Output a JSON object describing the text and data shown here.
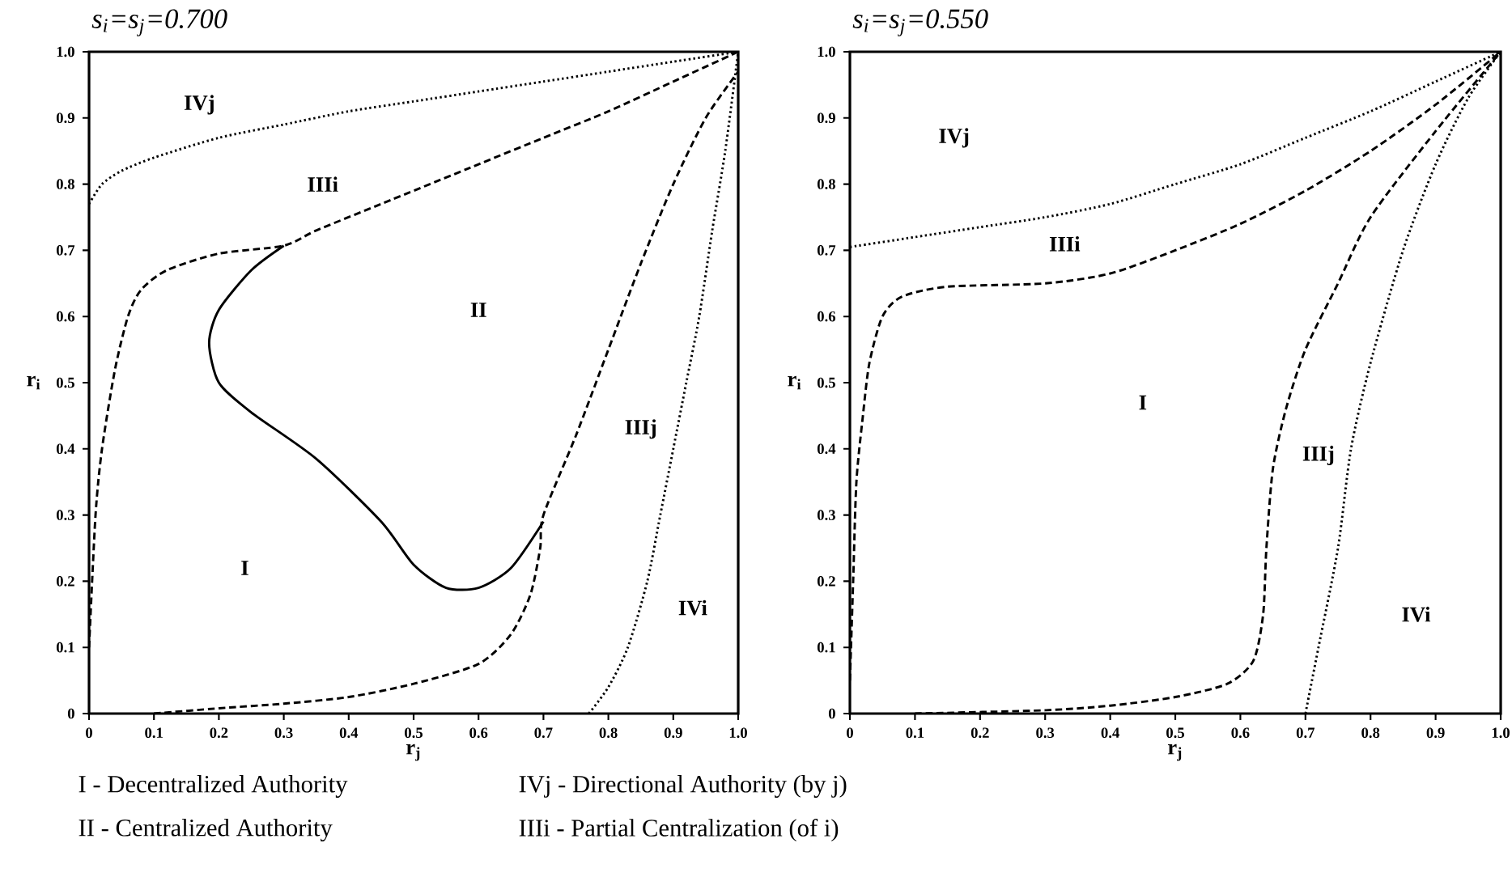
{
  "chart_data": [
    {
      "type": "line",
      "title": "s$_{i}$=s$_{j}$=0.700",
      "xlabel": "r$_{j}$",
      "ylabel": "r$_{i}$",
      "xlim": [
        0,
        1
      ],
      "ylim": [
        0,
        1
      ],
      "xticks": [
        0,
        0.1,
        0.2,
        0.3,
        0.4,
        0.5,
        0.6,
        0.7,
        0.8,
        0.9,
        {
          "value": 1,
          "label": "1.0"
        }
      ],
      "yticks": [
        0,
        0.1,
        0.2,
        0.3,
        0.4,
        0.5,
        0.6,
        0.7,
        0.8,
        0.9,
        {
          "value": 1,
          "label": "1.0"
        }
      ],
      "series": [
        {
          "color": "#000000",
          "line_style": "dotted",
          "x": [
            0,
            0.02,
            0.05,
            0.1,
            0.2,
            0.3,
            0.4,
            0.5,
            0.6,
            0.7,
            0.8,
            0.9,
            1
          ],
          "values": [
            0.77,
            0.8,
            0.82,
            0.84,
            0.87,
            0.89,
            0.91,
            0.925,
            0.94,
            0.955,
            0.97,
            0.985,
            1
          ]
        },
        {
          "color": "#000000",
          "line_style": "dashed",
          "x": [
            0,
            0.01,
            0.02,
            0.04,
            0.06,
            0.08,
            0.12,
            0.2,
            0.3,
            0.35,
            0.45,
            0.6,
            0.7,
            0.8,
            0.9,
            1
          ],
          "values": [
            0.1,
            0.3,
            0.4,
            0.52,
            0.6,
            0.64,
            0.67,
            0.695,
            0.707,
            0.73,
            0.77,
            0.83,
            0.87,
            0.91,
            0.955,
            1
          ]
        },
        {
          "color": "#000000",
          "line_style": "solid",
          "x": [
            0.3,
            0.25,
            0.2,
            0.185,
            0.2,
            0.25,
            0.35,
            0.45,
            0.5,
            0.55,
            0.6,
            0.65,
            0.7
          ],
          "values": [
            0.707,
            0.67,
            0.61,
            0.56,
            0.5,
            0.455,
            0.385,
            0.29,
            0.225,
            0.19,
            0.19,
            0.22,
            0.29
          ]
        },
        {
          "color": "#000000",
          "line_style": "dashed",
          "x": [
            0.1,
            0.2,
            0.3,
            0.4,
            0.5,
            0.6,
            0.65,
            0.68,
            0.695,
            0.7,
            0.75,
            0.8,
            0.85,
            0.9,
            0.95,
            1
          ],
          "values": [
            0,
            0.008,
            0.015,
            0.025,
            0.045,
            0.075,
            0.12,
            0.18,
            0.25,
            0.3,
            0.42,
            0.55,
            0.68,
            0.8,
            0.9,
            0.97
          ]
        },
        {
          "color": "#000000",
          "line_style": "dotted",
          "x": [
            0.77,
            0.8,
            0.83,
            0.86,
            0.88,
            0.9,
            0.92,
            0.94,
            0.96,
            0.98,
            1
          ],
          "values": [
            0,
            0.04,
            0.1,
            0.2,
            0.3,
            0.4,
            0.5,
            0.6,
            0.73,
            0.85,
            1
          ]
        }
      ],
      "annotations": [
        "IVj",
        "IIIi",
        "II",
        "IIIj",
        "I",
        "IVi",
        "I - Decentralized Authority",
        "II - Centralized Authority",
        "IVj - Directional Authority (by j)",
        "IIIi - Partial Centralization (of i)"
      ]
    },
    {
      "type": "line",
      "title": "s$_{i}$=s$_{j}$=0.550",
      "xlabel": "r$_{j}$",
      "ylabel": "r$_{i}$",
      "xlim": [
        0,
        1
      ],
      "ylim": [
        0,
        1
      ],
      "xticks": [
        0,
        0.1,
        0.2,
        0.3,
        0.4,
        0.5,
        0.6,
        0.7,
        0.8,
        0.9,
        {
          "value": 1,
          "label": "1.0"
        }
      ],
      "yticks": [
        0,
        0.1,
        0.2,
        0.3,
        0.4,
        0.5,
        0.6,
        0.7,
        0.8,
        0.9,
        {
          "value": 1,
          "label": "1.0"
        }
      ],
      "series": [
        {
          "color": "#000000",
          "line_style": "dotted",
          "x": [
            0,
            0.1,
            0.2,
            0.3,
            0.4,
            0.5,
            0.6,
            0.7,
            0.8,
            0.9,
            1
          ],
          "values": [
            0.705,
            0.72,
            0.735,
            0.75,
            0.77,
            0.8,
            0.83,
            0.87,
            0.91,
            0.955,
            1
          ]
        },
        {
          "color": "#000000",
          "line_style": "dashed",
          "x": [
            0,
            0.005,
            0.01,
            0.02,
            0.03,
            0.05,
            0.08,
            0.15,
            0.3,
            0.4,
            0.5,
            0.6,
            0.7,
            0.8,
            0.9,
            1
          ],
          "values": [
            0.05,
            0.2,
            0.35,
            0.45,
            0.53,
            0.6,
            0.63,
            0.645,
            0.65,
            0.665,
            0.7,
            0.74,
            0.79,
            0.85,
            0.92,
            1
          ]
        },
        {
          "color": "#000000",
          "line_style": "dashed",
          "x": [
            0.1,
            0.3,
            0.4,
            0.5,
            0.58,
            0.62,
            0.635,
            0.64,
            0.65,
            0.67,
            0.7,
            0.75,
            0.8,
            0.9,
            1
          ],
          "values": [
            0,
            0.005,
            0.012,
            0.025,
            0.045,
            0.08,
            0.15,
            0.25,
            0.37,
            0.46,
            0.55,
            0.65,
            0.75,
            0.88,
            1
          ]
        },
        {
          "color": "#000000",
          "line_style": "dotted",
          "x": [
            0.7,
            0.72,
            0.75,
            0.77,
            0.8,
            0.85,
            0.9,
            0.95,
            1
          ],
          "values": [
            0,
            0.1,
            0.25,
            0.4,
            0.53,
            0.7,
            0.83,
            0.93,
            1
          ]
        }
      ],
      "annotations": [
        "IVj",
        "IIIi",
        "I",
        "IIIj",
        "IVi"
      ]
    }
  ]
}
